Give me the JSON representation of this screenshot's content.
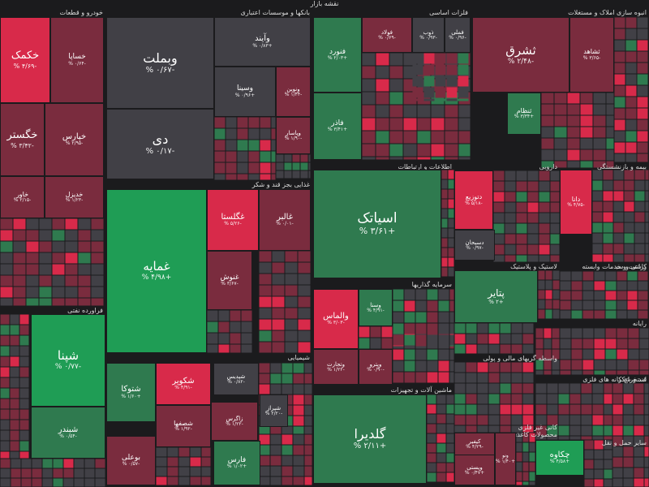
{
  "title": "نقشه بازار",
  "colors": {
    "background": "#1b1b1d",
    "strong_up": "#1f9d55",
    "up": "#2f7a4f",
    "neutral": "#414046",
    "down": "#7a2c3e",
    "strong_down": "#d82a4a"
  },
  "sections": [
    "خودرو و قطعات",
    "بانکها و موسسات اعتباری",
    "فلزات اساسی",
    "انبوه سازی املاک و مستغلات",
    "فراورده نفتی",
    "غذایی بجز قند و شکر",
    "اطلاعات و ارتباطات",
    "دارویی",
    "بیمه و بازنشستگی",
    "سرمایه گذاریها",
    "لاستیک و پلاستیک",
    "زراعت و خدمات وابسته",
    "کاشی و سرامیک",
    "رایانه",
    "شیمیایی",
    "ماشین آلات و تجهیزات",
    "واسطه گریهای مالی و پولی",
    "استخراج کانه های فلزی",
    "قند و شکر",
    "کانی غیر فلزی",
    "محصولات کاغذی",
    "سایر حمل و نقل"
  ],
  "stocks": [
    {
      "name": "خکمک",
      "change": "-۴/۶۹ %"
    },
    {
      "name": "خساپا",
      "change": "-۰/۶۴ %"
    },
    {
      "name": "خگستر",
      "change": "-۳/۴۲ %"
    },
    {
      "name": "خپارس",
      "change": "-۲/۹۵ %"
    },
    {
      "name": "خاور",
      "change": "-۲/۱۵ %"
    },
    {
      "name": "خدیزل",
      "change": "-۱/۲۳ %"
    },
    {
      "name": "وبملت",
      "change": "-۰/۶۷ %"
    },
    {
      "name": "دی",
      "change": "-۰/۱۷ %"
    },
    {
      "name": "وآیند",
      "change": "+۰/۸۳ %"
    },
    {
      "name": "وسینا",
      "change": "+۰/۹۶ %"
    },
    {
      "name": "ونوین",
      "change": "-۱/۴۴ %"
    },
    {
      "name": "وپاسار",
      "change": "-۱/۹۰ %"
    },
    {
      "name": "فولاد",
      "change": "-۰/۶۹ %"
    },
    {
      "name": "فملی",
      "change": "-۰/۹۶ %"
    },
    {
      "name": "ذوب",
      "change": "-۰/۹۳ %"
    },
    {
      "name": "فنورد",
      "change": "+۲/۰۳ %"
    },
    {
      "name": "فاذر",
      "change": "+۳/۴۱ %"
    },
    {
      "name": "ثشرق",
      "change": "-۲/۴۸ %"
    },
    {
      "name": "ثشاهد",
      "change": "-۳/۶۵ %"
    },
    {
      "name": "ثنظام",
      "change": "+۳/۳۴ %"
    },
    {
      "name": "غمایه",
      "change": "+۴/۹۸ %"
    },
    {
      "name": "غگلستا",
      "change": "-۵/۲۶ %"
    },
    {
      "name": "غالبر",
      "change": "-۰/۰۱ %"
    },
    {
      "name": "غنوش",
      "change": "-۳/۶۷ %"
    },
    {
      "name": "اسیاتک",
      "change": "+۳/۶۱ %"
    },
    {
      "name": "دتوزیع",
      "change": "-۵/۱۸ %"
    },
    {
      "name": "دسبحان",
      "change": "-۰/۹۷ %"
    },
    {
      "name": "دانا",
      "change": "-۴/۷۵ %"
    },
    {
      "name": "شپنا",
      "change": "-۰/۷۷ %"
    },
    {
      "name": "شبندر",
      "change": "-۰/۵۴ %"
    },
    {
      "name": "والماس",
      "change": "-۳/۰۳ %"
    },
    {
      "name": "وسنا",
      "change": "-۴/۹۱ %"
    },
    {
      "name": "پتایر",
      "change": "+۲ %"
    },
    {
      "name": "شتوکا",
      "change": "+۱/۶۰ %"
    },
    {
      "name": "شکویر",
      "change": "-۴/۹۱ %"
    },
    {
      "name": "شصفها",
      "change": "-۱/۹۲ %"
    },
    {
      "name": "بوعلی",
      "change": "-۰/۵۷ %"
    },
    {
      "name": "گلدیرا",
      "change": "+۲/۱۱ %"
    },
    {
      "name": "وتجارت",
      "change": "-۱/۲۲ %"
    },
    {
      "name": "وپترو",
      "change": "-۰/۹۰ %"
    },
    {
      "name": "کیفیر",
      "change": "-۴/۲۹ %"
    },
    {
      "name": "چکاوه",
      "change": "+۴/۵۸ %"
    },
    {
      "name": "وپستی",
      "change": "+۰/۴۷ %"
    },
    {
      "name": "ونو",
      "change": "+۱/۴۰ %"
    },
    {
      "name": "فارس",
      "change": "+۱/۰۲ %"
    },
    {
      "name": "زاگرس",
      "change": "-۱/۲۲ %"
    },
    {
      "name": "شیراز",
      "change": "-۲/۲۰ %"
    },
    {
      "name": "شپدیس",
      "change": "-۰/۸۲ %"
    }
  ]
}
